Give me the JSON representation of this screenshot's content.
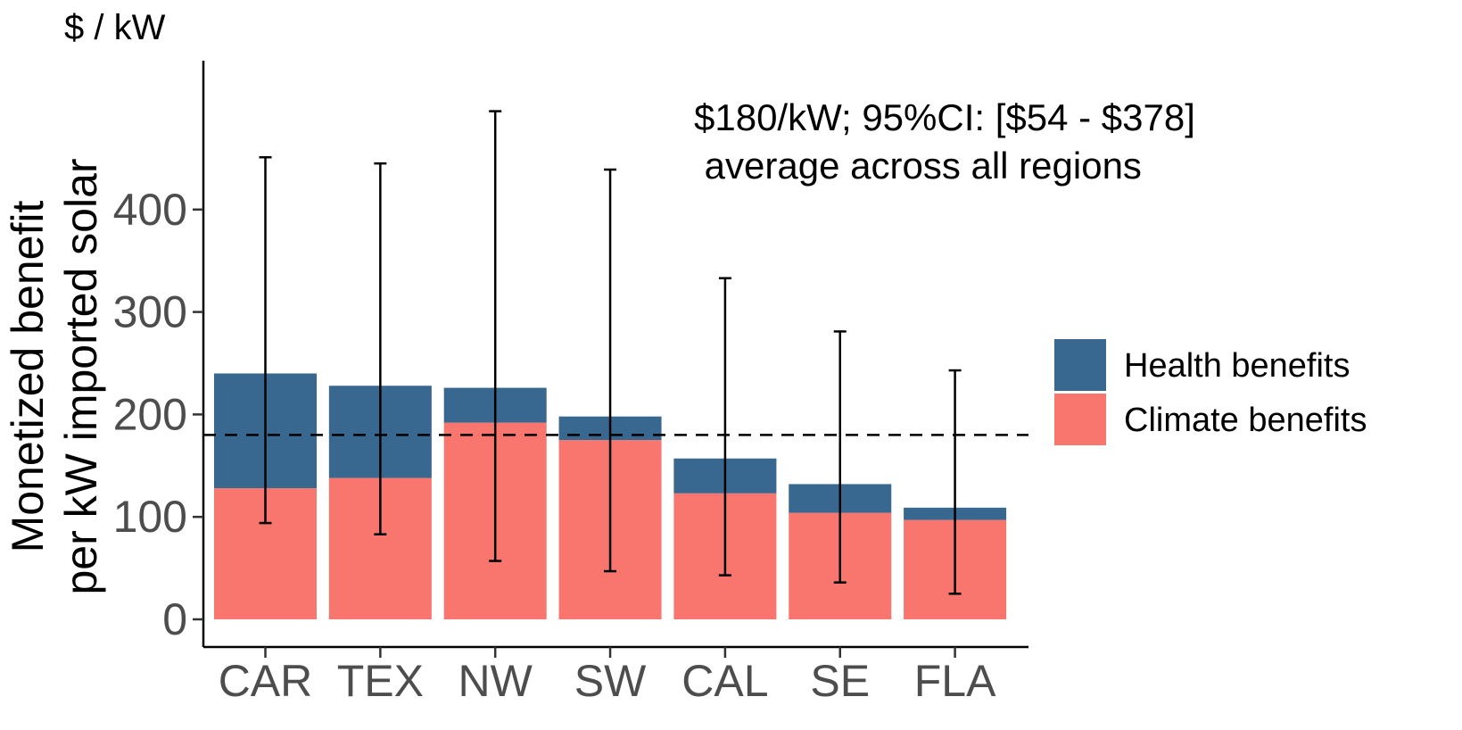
{
  "chart_data": {
    "type": "bar",
    "stacked": true,
    "title": "",
    "unit_label": "$ / kW",
    "ylabel_lines": [
      "Monetized benefit",
      "per kW imported solar"
    ],
    "xlabel": "",
    "categories": [
      "CAR",
      "TEX",
      "NW",
      "SW",
      "CAL",
      "SE",
      "FLA"
    ],
    "series": [
      {
        "name": "Climate benefits",
        "color": "#F8766D",
        "values": [
          128,
          138,
          192,
          175,
          123,
          104,
          97
        ]
      },
      {
        "name": "Health benefits",
        "color": "#386890",
        "values": [
          112,
          90,
          34,
          23,
          34,
          28,
          12
        ]
      }
    ],
    "error_bars": [
      {
        "low": 94,
        "high": 451
      },
      {
        "low": 83,
        "high": 445
      },
      {
        "low": 57,
        "high": 496
      },
      {
        "low": 47,
        "high": 439
      },
      {
        "low": 43,
        "high": 333
      },
      {
        "low": 36,
        "high": 281
      },
      {
        "low": 25,
        "high": 243
      }
    ],
    "reference_line": {
      "value": 180,
      "style": "dashed"
    },
    "annotation_lines": [
      "$180/kW; 95%CI: [$54 - $378]",
      " average across all regions"
    ],
    "yticks": [
      0,
      100,
      200,
      300,
      400
    ],
    "ylim": [
      0,
      500
    ],
    "grid": false,
    "legend_position": "right",
    "legend_order": [
      "Health benefits",
      "Climate benefits"
    ]
  }
}
